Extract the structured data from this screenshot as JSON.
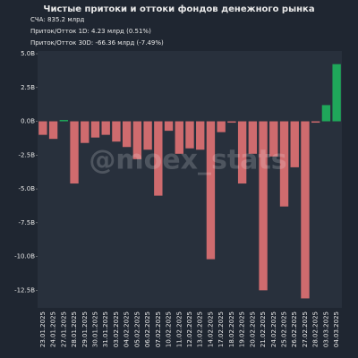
{
  "chart_data": {
    "type": "bar",
    "title": "Чистые притоки и оттоки фондов денежного рынка",
    "annotations": [
      "СЧА: 835.2 млрд",
      "Приток/Отток 1D: 4.23 млрд (0.51%)",
      "Приток/Отток 30D: -66.36 млрд (-7.49%)",
      "@moex_stats"
    ],
    "categories": [
      "23.01.2025",
      "24.01.2025",
      "27.01.2025",
      "28.01.2025",
      "29.01.2025",
      "30.01.2025",
      "31.01.2025",
      "03.02.2025",
      "04.02.2025",
      "05.02.2025",
      "06.02.2025",
      "07.02.2025",
      "10.02.2025",
      "11.02.2025",
      "12.02.2025",
      "13.02.2025",
      "14.02.2025",
      "17.02.2025",
      "18.02.2025",
      "19.02.2025",
      "20.02.2025",
      "21.02.2025",
      "24.02.2025",
      "25.02.2025",
      "26.02.2025",
      "27.02.2025",
      "28.02.2025",
      "03.03.2025",
      "04.03.2025"
    ],
    "values": [
      -1.0,
      -1.3,
      0.1,
      -4.6,
      -1.6,
      -1.2,
      -1.0,
      -1.5,
      -1.9,
      -2.8,
      -2.1,
      -5.5,
      -0.7,
      -2.4,
      -2.0,
      -2.1,
      -10.2,
      -0.8,
      -0.1,
      -4.6,
      -2.4,
      -12.5,
      -2.6,
      -6.3,
      -3.4,
      -13.1,
      -0.1,
      1.2,
      4.23
    ],
    "positive_color": "#1fa75a",
    "negative_color": "#cf6b6e",
    "ylim": [
      -13.8,
      5.2
    ],
    "yticks": [
      {
        "value": 5,
        "label": "5.0B"
      },
      {
        "value": 2.5,
        "label": "2.5B"
      },
      {
        "value": 0,
        "label": "0.0B"
      },
      {
        "value": -2.5,
        "label": "-2.5B"
      },
      {
        "value": -5,
        "label": "-5.0B"
      },
      {
        "value": -7.5,
        "label": "-7.5B"
      },
      {
        "value": -10,
        "label": "-10.0B"
      },
      {
        "value": -12.5,
        "label": "-12.5B"
      }
    ]
  }
}
